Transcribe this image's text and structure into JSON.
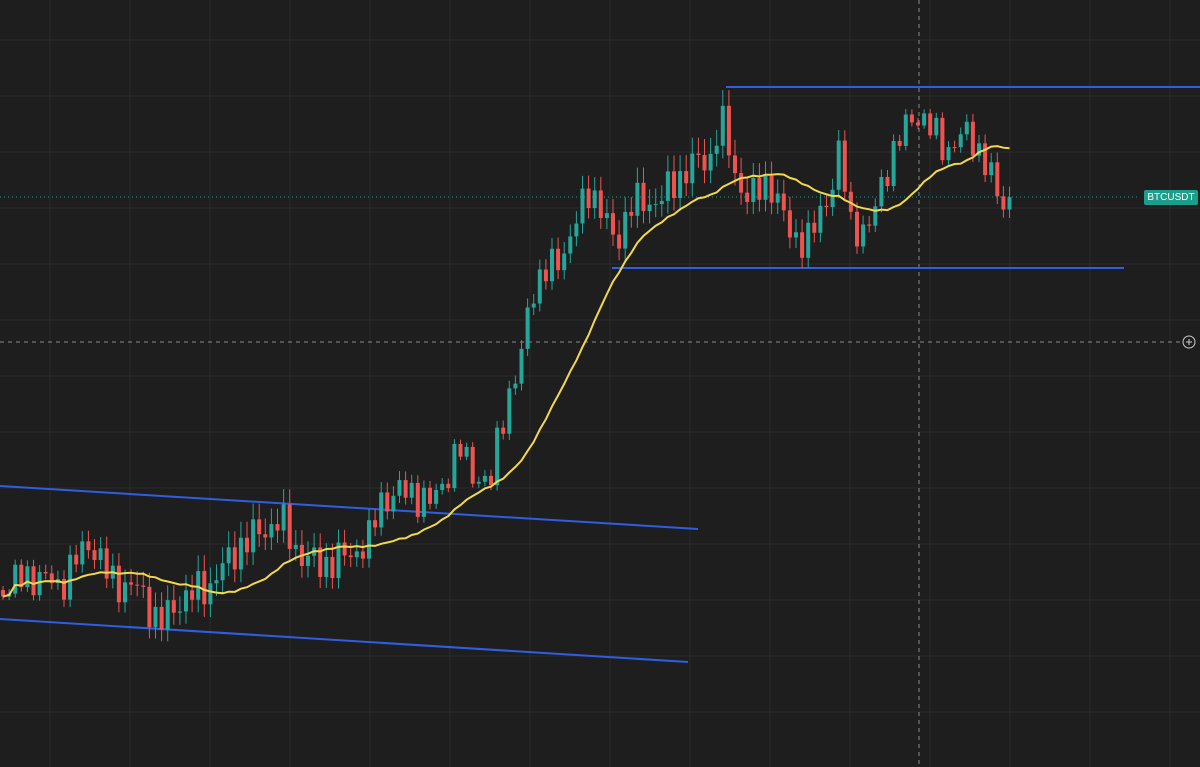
{
  "symbol_label": "BTCUSDT"
}
